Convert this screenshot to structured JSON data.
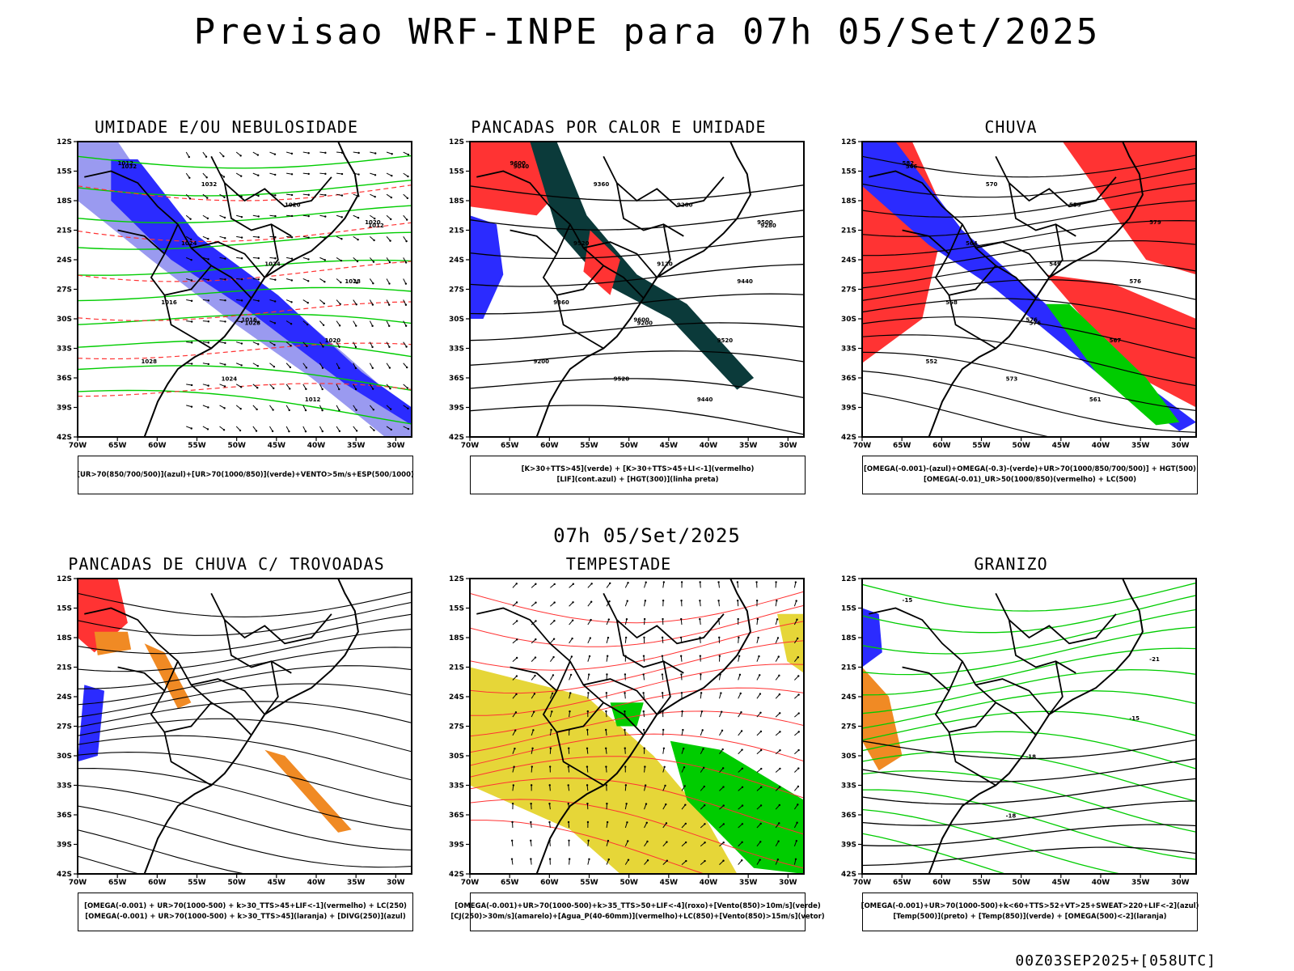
{
  "title": "Previsao WRF-INPE  para 07h 05/Set/2025",
  "mid_title": "07h 05/Set/2025",
  "footer": "00Z03SEP2025+[058UTC]",
  "axes": {
    "lat_labels": [
      "12S",
      "15S",
      "18S",
      "21S",
      "24S",
      "27S",
      "30S",
      "33S",
      "36S",
      "39S",
      "42S"
    ],
    "lon_labels": [
      "70W",
      "65W",
      "60W",
      "55W",
      "50W",
      "45W",
      "40W",
      "35W",
      "30W"
    ]
  },
  "panels": [
    {
      "title": "UMIDADE E/OU NEBULOSIDADE",
      "legend": [
        "[UR>70(850/700/500)](azul)+[UR>70(1000/850)](verde)+VENTO>5m/s+ESP(500/1000)"
      ],
      "contour_labels": [
        "1012",
        "1016",
        "1020",
        "1024",
        "1028",
        "1032",
        "1020",
        "1024",
        "1012",
        "1016",
        "1020",
        "1028",
        "1024",
        "1032",
        "1028",
        "1012"
      ]
    },
    {
      "title": "PANCADAS POR CALOR E UMIDADE",
      "legend": [
        "[K>30+TTS>45](verde) + [K>30+TTS>45+LI<-1](vermelho)",
        "[LIF](cont.azul) + [HGT(300)](linha preta)"
      ],
      "contour_labels": [
        "9600",
        "9600",
        "9500",
        "9520",
        "9440",
        "9360",
        "9520",
        "9520",
        "9440",
        "9360",
        "9280",
        "9200",
        "9120",
        "9040",
        "9200",
        "9280"
      ]
    },
    {
      "title": "CHUVA",
      "legend": [
        "[OMEGA(-0.001)-(azul)+OMEGA(-0.3)-(verde)+UR>70(1000/850/700/500)] + HGT(500)",
        "[OMEGA(-0.01)_UR>50(1000/850)(vermelho) + LC(500)"
      ],
      "contour_labels": [
        "582",
        "576",
        "579",
        "573",
        "576",
        "570",
        "567",
        "564",
        "561",
        "558",
        "555",
        "552",
        "549",
        "546",
        "576"
      ]
    },
    {
      "title": "PANCADAS DE CHUVA C/ TROVOADAS",
      "legend": [
        "[OMEGA(-0.001) + UR>70(1000-500) + k>30_TTS>45+LIF<-1](vermelho) + LC(250)",
        "[OMEGA(-0.001) + UR>70(1000-500) + k>30_TTS>45](laranja) + [DIVG(250)](azul)"
      ],
      "contour_labels": []
    },
    {
      "title": "TEMPESTADE",
      "legend": [
        "[OMEGA(-0.001)+UR>70(1000-500)+k>35_TTS>50+LIF<-4](roxo)+[Vento(850)>10m/s](verde)",
        "[CJ(250)>30m/s](amarelo)+[Agua_P(40-60mm)](vermelho)+LC(850)+[Vento(850)>15m/s](vetor)"
      ],
      "contour_labels": []
    },
    {
      "title": "GRANIZO",
      "legend": [
        "[OMEGA(-0.001)+UR>70(1000-500)+k<60+TTS>52+VT>25+SWEAT>220+LIF<-2](azul)",
        "[Temp(500)](preto) + [Temp(850)](verde) + [OMEGA(500)<-2](laranja)"
      ],
      "contour_labels": [
        "-15",
        "-18",
        "-21",
        "-18",
        "-15"
      ]
    }
  ],
  "colors": {
    "blue": "#2b2bff",
    "lightblue": "#9a9af0",
    "green": "#00cc00",
    "red": "#ff3333",
    "darkteal": "#0b3a3a",
    "orange": "#f08a24",
    "yellow": "#e6d638"
  }
}
